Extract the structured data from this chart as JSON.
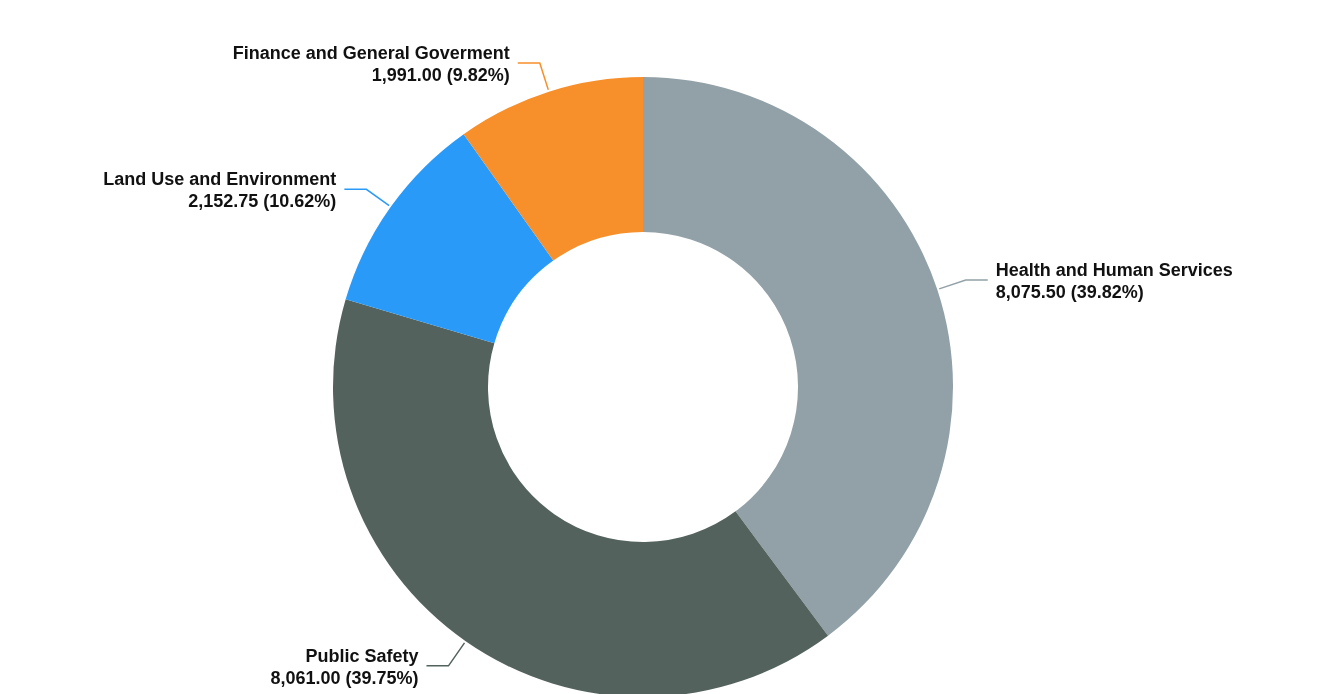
{
  "chart_data": {
    "type": "donut",
    "categories": [
      "Health and Human Services",
      "Public Safety",
      "Land Use and Environment",
      "Finance and General Goverment"
    ],
    "values": [
      8075.5,
      8061.0,
      2152.75,
      1991.0
    ],
    "value_labels": [
      "8,075.50 (39.82%)",
      "8,061.00 (39.75%)",
      "2,152.75 (10.62%)",
      "1,991.00 (9.82%)"
    ],
    "colors": [
      "#92a1a8",
      "#53625c",
      "#2a9af8",
      "#f78f2a"
    ],
    "legend": false
  }
}
